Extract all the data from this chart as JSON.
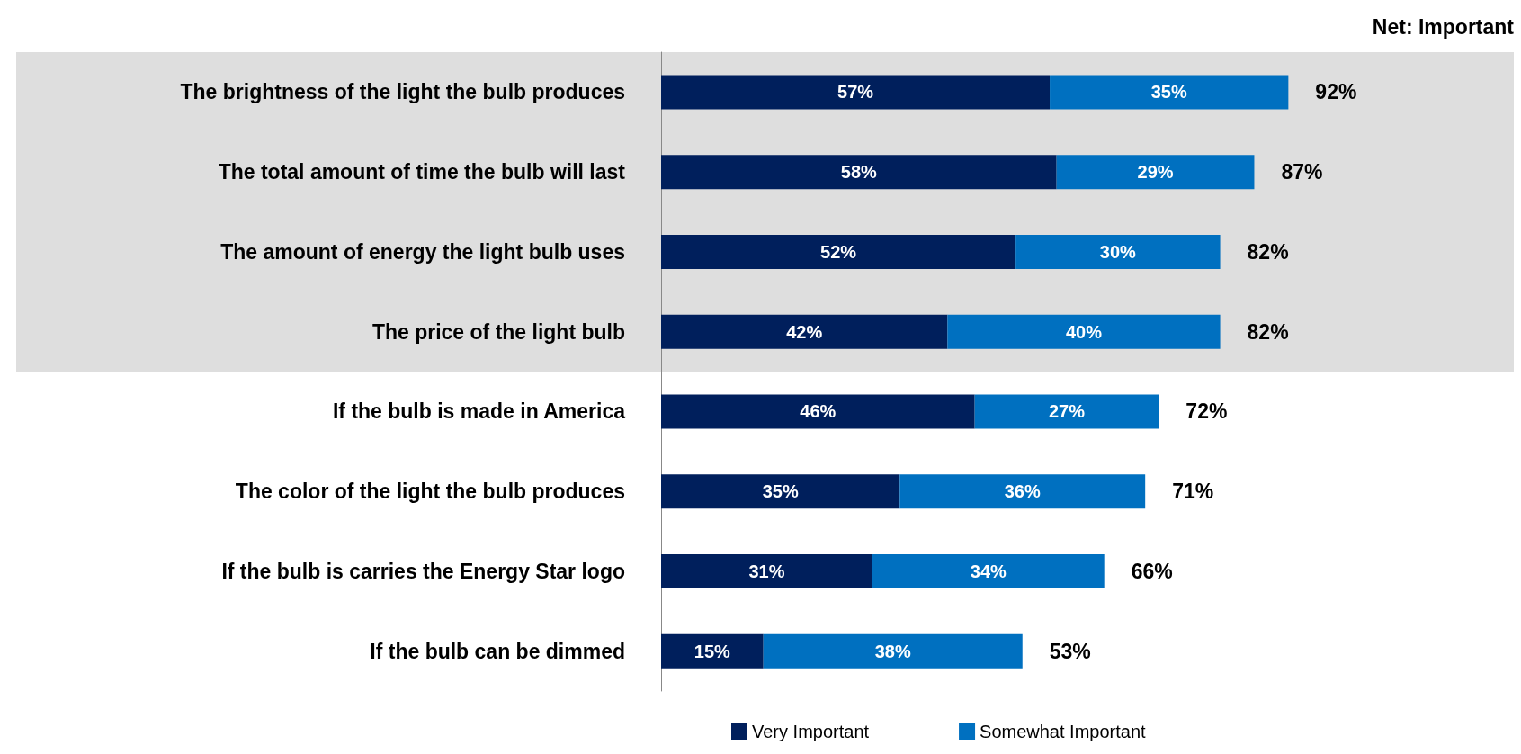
{
  "chart_data": {
    "type": "bar",
    "orientation": "horizontal",
    "stacked": true,
    "categories": [
      "The brightness of the light the bulb produces",
      "The total amount of time the bulb will last",
      "The amount of energy the light bulb uses",
      "The price of the light bulb",
      "If the bulb is made in America",
      "The color of the light the bulb produces",
      "If the bulb is carries the Energy Star logo",
      "If the bulb can be dimmed"
    ],
    "series": [
      {
        "name": "Very Important",
        "color": "#001f5c",
        "values": [
          57,
          58,
          52,
          42,
          46,
          35,
          31,
          15
        ],
        "value_labels": [
          "57%",
          "58%",
          "52%",
          "42%",
          "46%",
          "35%",
          "31%",
          "15%"
        ]
      },
      {
        "name": "Somewhat Important",
        "color": "#0070c0",
        "values": [
          35,
          29,
          30,
          40,
          27,
          36,
          34,
          38
        ],
        "value_labels": [
          "35%",
          "29%",
          "30%",
          "40%",
          "27%",
          "36%",
          "34%",
          "38%"
        ]
      }
    ],
    "totals": [
      "92%",
      "87%",
      "82%",
      "82%",
      "72%",
      "71%",
      "66%",
      "53%"
    ],
    "annotations": [
      "Net: Important"
    ],
    "bands": [
      {
        "axis": "y",
        "from": "The brightness of the light the bulb produces",
        "to": "The price of the light bulb",
        "color": "#dedede"
      }
    ],
    "legend": "bottom"
  }
}
